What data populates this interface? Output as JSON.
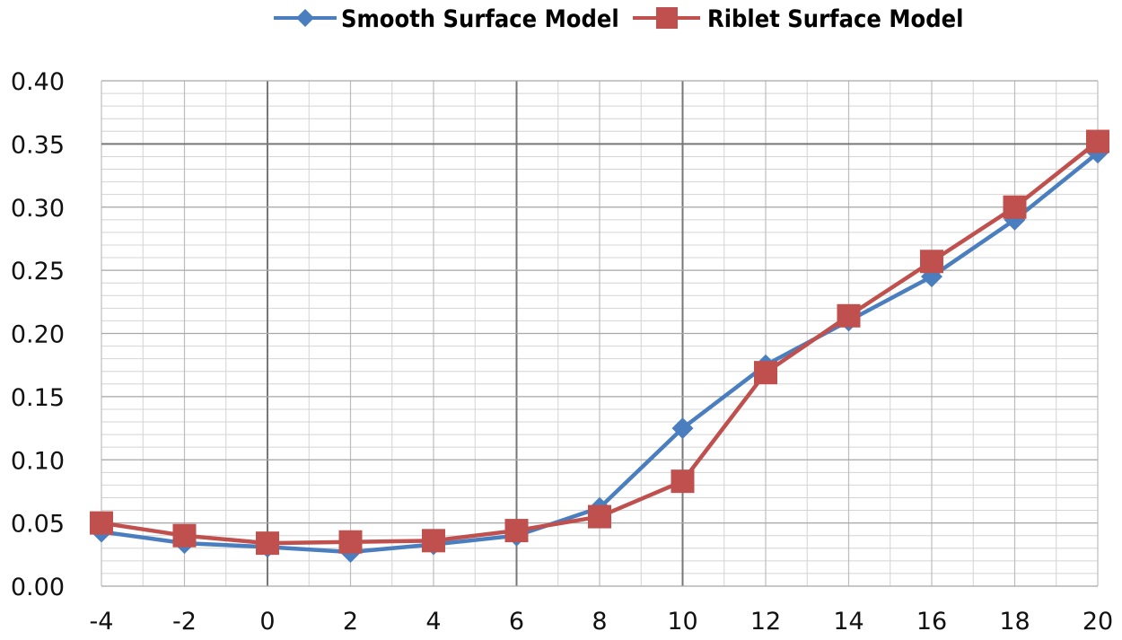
{
  "chart_data": {
    "type": "line",
    "title": "",
    "xlabel": "",
    "ylabel": "",
    "x": [
      -4,
      -2,
      0,
      2,
      4,
      6,
      8,
      10,
      12,
      14,
      16,
      18,
      20
    ],
    "xlim": [
      -4,
      20
    ],
    "ylim": [
      0,
      0.4
    ],
    "x_ticks": [
      "-4",
      "-2",
      "0",
      "2",
      "4",
      "6",
      "8",
      "10",
      "12",
      "14",
      "16",
      "18",
      "20"
    ],
    "y_ticks": [
      "0.00",
      "0.05",
      "0.10",
      "0.15",
      "0.20",
      "0.25",
      "0.30",
      "0.35",
      "0.40"
    ],
    "y_tick_values": [
      0,
      0.05,
      0.1,
      0.15,
      0.2,
      0.25,
      0.3,
      0.35,
      0.4
    ],
    "grid": true,
    "legend_position": "top",
    "series": [
      {
        "name": "Smooth Surface Model",
        "color": "#4a7ebf",
        "marker": "diamond",
        "values": [
          0.043,
          0.034,
          0.031,
          0.027,
          0.033,
          0.04,
          0.062,
          0.125,
          0.175,
          0.21,
          0.245,
          0.29,
          0.343
        ]
      },
      {
        "name": "Riblet Surface Model",
        "color": "#c0504d",
        "marker": "square",
        "values": [
          0.05,
          0.04,
          0.034,
          0.035,
          0.036,
          0.044,
          0.055,
          0.083,
          0.169,
          0.214,
          0.257,
          0.3,
          0.352
        ]
      }
    ]
  }
}
